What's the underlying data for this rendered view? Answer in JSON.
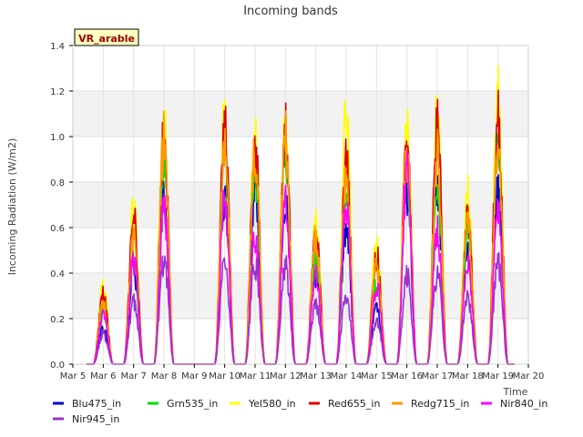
{
  "chart_data": {
    "type": "line",
    "title": "Incoming bands",
    "xlabel": "Time",
    "ylabel": "Incoming Radiation (W/m2)",
    "badge": "VR_arable",
    "ylim": [
      0,
      1.4
    ],
    "yticks": [
      "0.0",
      "0.2",
      "0.4",
      "0.6",
      "0.8",
      "1.0",
      "1.2",
      "1.4"
    ],
    "xlim": [
      5,
      20
    ],
    "xticks": [
      "Mar 5",
      "Mar 6",
      "Mar 7",
      "Mar 8",
      "Mar 9",
      "Mar 10",
      "Mar 11",
      "Mar 12",
      "Mar 13",
      "Mar 14",
      "Mar 15",
      "Mar 16",
      "Mar 17",
      "Mar 18",
      "Mar 19",
      "Mar 20"
    ],
    "grid": true,
    "legend_position": "bottom",
    "day_peaks_x": [
      6.0,
      7.0,
      8.0,
      10.0,
      11.0,
      12.0,
      13.0,
      14.0,
      15.0,
      16.0,
      17.0,
      18.0,
      19.0
    ],
    "series": [
      {
        "name": "Blu475_in",
        "color": "#0000cc",
        "peaks": [
          0.18,
          0.48,
          0.84,
          0.85,
          0.88,
          0.83,
          0.45,
          0.7,
          0.3,
          0.85,
          0.87,
          0.56,
          0.85
        ]
      },
      {
        "name": "Grn535_in",
        "color": "#00dd00",
        "peaks": [
          0.27,
          0.56,
          1.03,
          1.05,
          0.98,
          1.04,
          0.55,
          0.84,
          0.4,
          0.99,
          0.89,
          0.69,
          1.1
        ]
      },
      {
        "name": "Yel580_in",
        "color": "#ffff00",
        "peaks": [
          0.39,
          0.78,
          1.21,
          1.22,
          1.13,
          1.2,
          0.72,
          1.25,
          0.62,
          1.17,
          1.22,
          0.85,
          1.32
        ]
      },
      {
        "name": "Red655_in",
        "color": "#dd0000",
        "peaks": [
          0.35,
          0.73,
          1.14,
          1.16,
          1.11,
          1.15,
          0.67,
          1.0,
          0.55,
          1.11,
          1.17,
          0.78,
          1.25
        ]
      },
      {
        "name": "Redg715_in",
        "color": "#ff9900",
        "peaks": [
          0.3,
          0.62,
          1.13,
          1.13,
          1.08,
          1.12,
          0.63,
          0.93,
          0.5,
          1.06,
          1.06,
          0.73,
          1.12
        ]
      },
      {
        "name": "Nir840_in",
        "color": "#ff00ff",
        "peaks": [
          0.25,
          0.52,
          0.78,
          0.81,
          0.65,
          0.8,
          0.46,
          0.82,
          0.39,
          0.95,
          0.67,
          0.5,
          0.78
        ]
      },
      {
        "name": "Nir945_in",
        "color": "#9933cc",
        "peaks": [
          0.15,
          0.31,
          0.52,
          0.52,
          0.5,
          0.49,
          0.3,
          0.35,
          0.22,
          0.45,
          0.45,
          0.34,
          0.5
        ]
      }
    ]
  }
}
